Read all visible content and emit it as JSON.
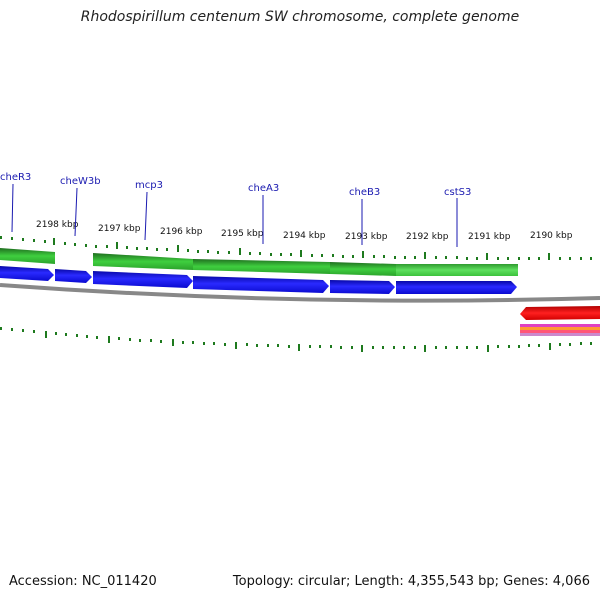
{
  "title": "Rhodospirillum centenum SW chromosome, complete genome",
  "footer": {
    "accession": "Accession: NC_011420",
    "stats": "Topology: circular; Length: 4,355,543 bp; Genes: 4,066"
  },
  "kbp_ticks": [
    "2198 kbp",
    "2197 kbp",
    "2196 kbp",
    "2195 kbp",
    "2194 kbp",
    "2193 kbp",
    "2192 kbp",
    "2191 kbp",
    "2190 kbp"
  ],
  "gene_labels": [
    "cheR3",
    "cheW3b",
    "mcp3",
    "cheA3",
    "cheB3",
    "cstS3"
  ],
  "colors": {
    "forward_genes": "#1010e0",
    "green_feature": "#3cc83c",
    "dark_green_feature": "#208a20",
    "backbone": "#888888",
    "red_feature": "#ee1111",
    "gene_label": "#1a1ab0",
    "tick": "#1e7a1e"
  }
}
